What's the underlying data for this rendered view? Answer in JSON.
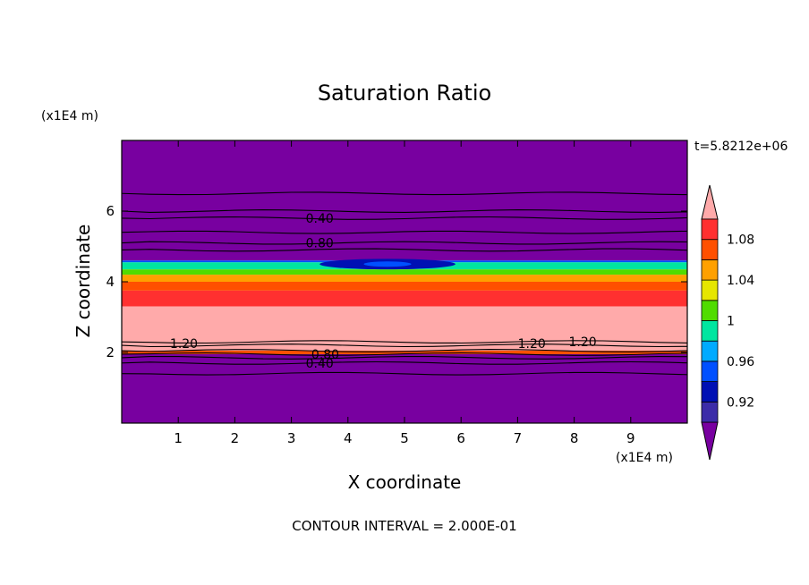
{
  "chart_data": {
    "type": "heatmap",
    "title": "Saturation Ratio",
    "xlabel": "X coordinate",
    "ylabel": "Z coordinate",
    "x_unit": "(x1E4 m)",
    "y_unit": "(x1E4 m)",
    "time_label": "t=5.8212e+06",
    "footer": "CONTOUR INTERVAL = 2.000E-01",
    "xlim": [
      0,
      10
    ],
    "ylim": [
      0,
      8
    ],
    "xticks": [
      1,
      2,
      3,
      4,
      5,
      6,
      7,
      8,
      9
    ],
    "yticks": [
      2,
      4,
      6
    ],
    "colorbar": {
      "levels": [
        0.9,
        0.92,
        0.94,
        0.96,
        0.98,
        1.0,
        1.02,
        1.04,
        1.06,
        1.08,
        1.1
      ],
      "tick_labels": [
        "0.92",
        "0.96",
        "1",
        "1.04",
        "1.08"
      ],
      "tick_values": [
        0.92,
        0.96,
        1.0,
        1.04,
        1.08
      ],
      "colors": [
        "#7800a0",
        "#3c2ca8",
        "#0010b4",
        "#0050ff",
        "#00aaff",
        "#00e6a0",
        "#50dc00",
        "#e6e600",
        "#ffa000",
        "#ff5000",
        "#ff3030",
        "#ffaaaa"
      ]
    },
    "bands": [
      {
        "z_top": 8.0,
        "z_bottom": 4.6,
        "value": 0.85
      },
      {
        "z_top": 4.6,
        "z_bottom": 4.55,
        "value": 0.95
      },
      {
        "z_top": 4.55,
        "z_bottom": 4.35,
        "value": 0.985
      },
      {
        "z_top": 4.35,
        "z_bottom": 4.2,
        "value": 1.015
      },
      {
        "z_top": 4.2,
        "z_bottom": 4.0,
        "value": 1.045
      },
      {
        "z_top": 4.0,
        "z_bottom": 3.75,
        "value": 1.065
      },
      {
        "z_top": 3.75,
        "z_bottom": 3.3,
        "value": 1.09
      },
      {
        "z_top": 3.3,
        "z_bottom": 2.05,
        "value": 1.15
      },
      {
        "z_top": 2.05,
        "z_bottom": 1.95,
        "value": 1.065
      },
      {
        "z_top": 1.95,
        "z_bottom": 0.0,
        "value": 0.85
      }
    ],
    "dry_anomaly": {
      "x_center": 4.7,
      "z_center": 4.5,
      "x_halfwidth": 1.2,
      "z_halfwidth": 0.15,
      "value": 0.93
    },
    "contour_labels": [
      {
        "text": "0.40",
        "x": 3.5,
        "z": 5.8
      },
      {
        "text": "0.80",
        "x": 3.5,
        "z": 5.1
      },
      {
        "text": "1.20",
        "x": 1.1,
        "z": 2.25
      },
      {
        "text": "0.80",
        "x": 3.6,
        "z": 1.95
      },
      {
        "text": "0.40",
        "x": 3.5,
        "z": 1.7
      },
      {
        "text": "1.20",
        "x": 7.25,
        "z": 2.25
      },
      {
        "text": "1.20",
        "x": 8.15,
        "z": 2.3
      }
    ],
    "contour_lines_z": [
      6.5,
      6.0,
      5.8,
      5.4,
      5.1,
      4.9,
      2.3,
      2.2,
      2.05,
      1.95,
      1.85,
      1.7,
      1.4
    ]
  }
}
